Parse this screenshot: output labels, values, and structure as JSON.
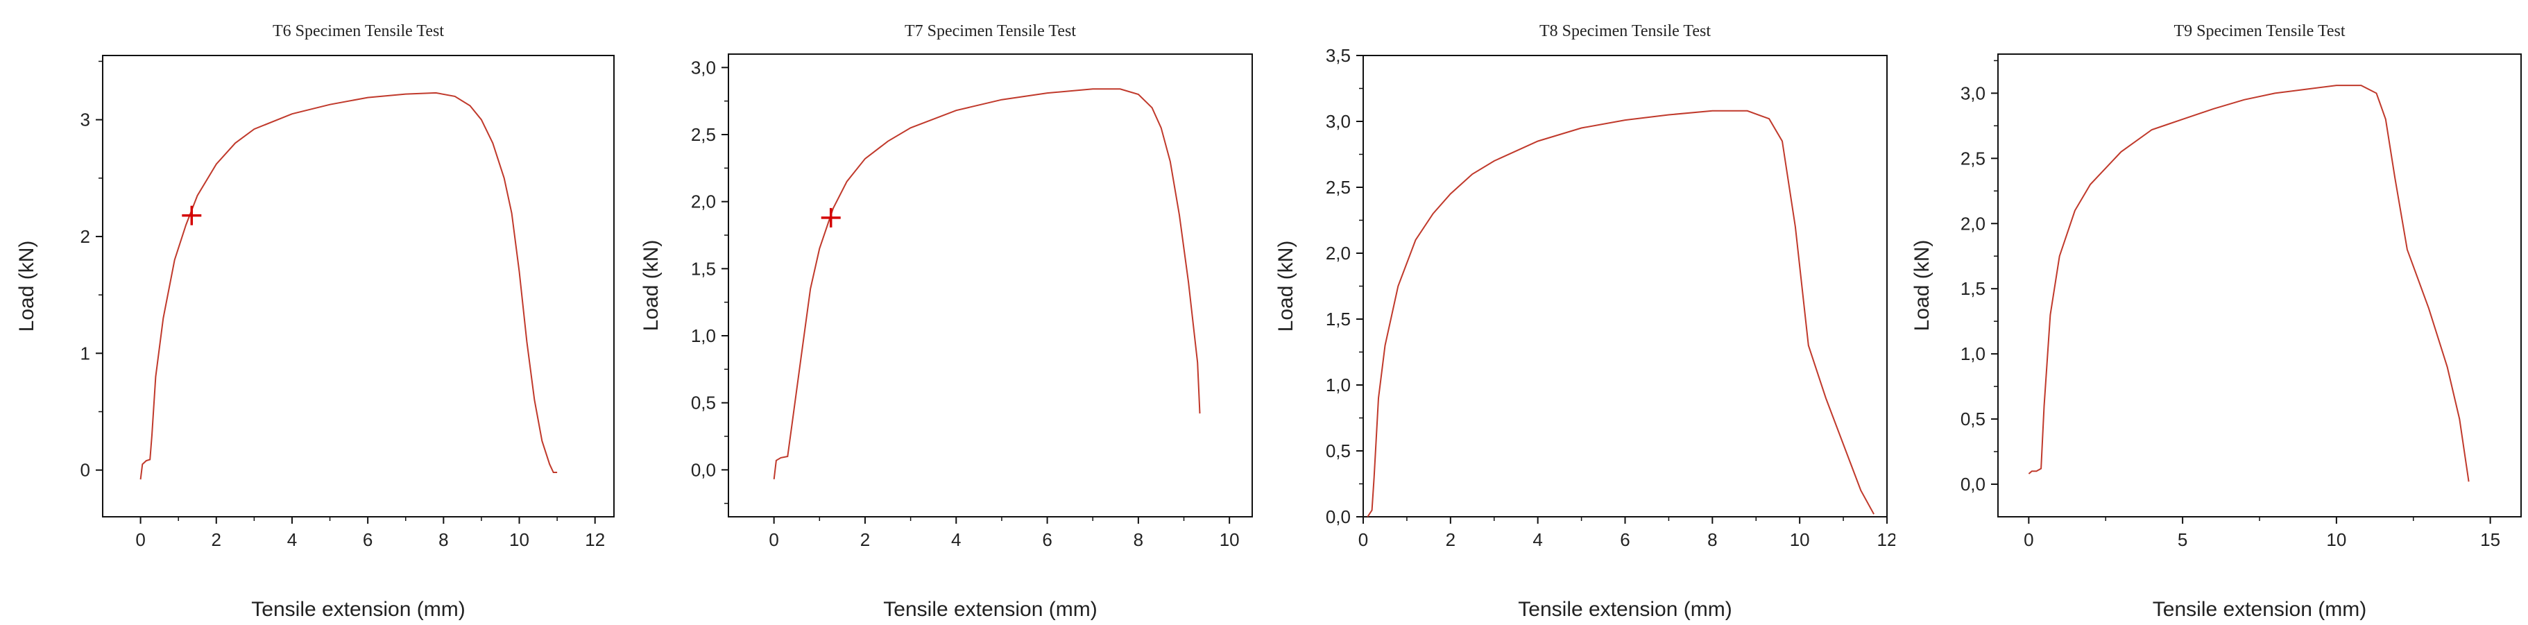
{
  "chart_data": [
    {
      "type": "line",
      "title": "T6 Specimen Tensile Test",
      "xlabel": "Tensile extension (mm)",
      "ylabel": "Load (kN)",
      "xlim": [
        -1,
        12.5
      ],
      "ylim": [
        -0.4,
        3.55
      ],
      "xticks": [
        0,
        2,
        4,
        6,
        8,
        10,
        12
      ],
      "xtick_labels": [
        "0",
        "2",
        "4",
        "6",
        "8",
        "10",
        "12"
      ],
      "yticks": [
        0,
        1,
        2,
        3
      ],
      "ytick_labels": [
        "0",
        "1",
        "2",
        "3"
      ],
      "grid": false,
      "series": [
        {
          "color": "#c0392b",
          "x": [
            0.0,
            0.05,
            0.15,
            0.25,
            0.3,
            0.4,
            0.6,
            0.9,
            1.2,
            1.5,
            2.0,
            2.5,
            3.0,
            4.0,
            5.0,
            6.0,
            7.0,
            7.8,
            8.3,
            8.7,
            9.0,
            9.3,
            9.6,
            9.8,
            10.0,
            10.2,
            10.4,
            10.6,
            10.8,
            10.9,
            11.0
          ],
          "y": [
            -0.08,
            0.05,
            0.08,
            0.09,
            0.3,
            0.8,
            1.3,
            1.8,
            2.1,
            2.35,
            2.62,
            2.8,
            2.92,
            3.05,
            3.13,
            3.19,
            3.22,
            3.23,
            3.2,
            3.12,
            3.0,
            2.8,
            2.5,
            2.2,
            1.7,
            1.1,
            0.6,
            0.25,
            0.05,
            -0.02,
            -0.02
          ]
        }
      ],
      "marker": {
        "x": 1.35,
        "y": 2.18,
        "symbol": "+",
        "color": "#d40000"
      }
    },
    {
      "type": "line",
      "title": "T7 Specimen Tensile Test",
      "xlabel": "Tensile extension (mm)",
      "ylabel": "Load (kN)",
      "xlim": [
        -1,
        10.5
      ],
      "ylim": [
        -0.35,
        3.1
      ],
      "xticks": [
        0,
        2,
        4,
        6,
        8,
        10
      ],
      "xtick_labels": [
        "0",
        "2",
        "4",
        "6",
        "8",
        "10"
      ],
      "yticks": [
        0,
        0.5,
        1.0,
        1.5,
        2.0,
        2.5,
        3.0
      ],
      "ytick_labels": [
        "0,0",
        "0,5",
        "1,0",
        "1,5",
        "2,0",
        "2,5",
        "3,0"
      ],
      "grid": false,
      "series": [
        {
          "color": "#c0392b",
          "x": [
            0.0,
            0.05,
            0.15,
            0.3,
            0.4,
            0.6,
            0.8,
            1.0,
            1.3,
            1.6,
            2.0,
            2.5,
            3.0,
            4.0,
            5.0,
            6.0,
            7.0,
            7.6,
            8.0,
            8.3,
            8.5,
            8.7,
            8.9,
            9.1,
            9.3,
            9.35
          ],
          "y": [
            -0.07,
            0.07,
            0.09,
            0.1,
            0.35,
            0.85,
            1.35,
            1.65,
            1.95,
            2.15,
            2.32,
            2.45,
            2.55,
            2.68,
            2.76,
            2.81,
            2.84,
            2.84,
            2.8,
            2.7,
            2.55,
            2.3,
            1.9,
            1.4,
            0.8,
            0.42
          ]
        }
      ],
      "marker": {
        "x": 1.25,
        "y": 1.88,
        "symbol": "+",
        "color": "#d40000"
      }
    },
    {
      "type": "line",
      "title": "T8 Specimen Tensile Test",
      "xlabel": "Tensile extension (mm)",
      "ylabel": "Load (kN)",
      "xlim": [
        0,
        12
      ],
      "ylim": [
        0,
        3.5
      ],
      "xticks": [
        0,
        2,
        4,
        6,
        8,
        10,
        12
      ],
      "xtick_labels": [
        "0",
        "2",
        "4",
        "6",
        "8",
        "10",
        "12"
      ],
      "yticks": [
        0,
        0.5,
        1.0,
        1.5,
        2.0,
        2.5,
        3.0,
        3.5
      ],
      "ytick_labels": [
        "0,0",
        "0,5",
        "1,0",
        "1,5",
        "2,0",
        "2,5",
        "3,0",
        "3,5"
      ],
      "grid": false,
      "series": [
        {
          "color": "#c0392b",
          "x": [
            0.1,
            0.2,
            0.25,
            0.35,
            0.5,
            0.8,
            1.2,
            1.6,
            2.0,
            2.5,
            3.0,
            4.0,
            5.0,
            6.0,
            7.0,
            8.0,
            8.8,
            9.3,
            9.6,
            9.9,
            10.2,
            10.6,
            11.0,
            11.4,
            11.7
          ],
          "y": [
            0.0,
            0.05,
            0.3,
            0.9,
            1.3,
            1.75,
            2.1,
            2.3,
            2.45,
            2.6,
            2.7,
            2.85,
            2.95,
            3.01,
            3.05,
            3.08,
            3.08,
            3.02,
            2.85,
            2.2,
            1.3,
            0.9,
            0.55,
            0.2,
            0.02
          ]
        }
      ]
    },
    {
      "type": "line",
      "title": "T9 Specimen Tensile Test",
      "xlabel": "Tensile extension (mm)",
      "ylabel": "Load (kN)",
      "xlim": [
        -1,
        16
      ],
      "ylim": [
        -0.25,
        3.3
      ],
      "xticks": [
        0,
        5,
        10,
        15
      ],
      "xtick_labels": [
        "0",
        "5",
        "10",
        "15"
      ],
      "yticks": [
        0,
        0.5,
        1.0,
        1.5,
        2.0,
        2.5,
        3.0
      ],
      "ytick_labels": [
        "0,0",
        "0,5",
        "1,0",
        "1,5",
        "2,0",
        "2,5",
        "3,0"
      ],
      "grid": false,
      "series": [
        {
          "color": "#c0392b",
          "x": [
            0.0,
            0.1,
            0.25,
            0.4,
            0.5,
            0.7,
            1.0,
            1.5,
            2.0,
            3.0,
            4.0,
            4.5,
            5.0,
            6.0,
            7.0,
            8.0,
            9.0,
            10.0,
            10.8,
            11.3,
            11.6,
            11.9,
            12.3,
            13.0,
            13.6,
            14.0,
            14.3
          ],
          "y": [
            0.08,
            0.1,
            0.1,
            0.12,
            0.6,
            1.3,
            1.75,
            2.1,
            2.3,
            2.55,
            2.72,
            2.76,
            2.8,
            2.88,
            2.95,
            3.0,
            3.03,
            3.06,
            3.06,
            3.0,
            2.8,
            2.35,
            1.8,
            1.35,
            0.9,
            0.5,
            0.02
          ]
        }
      ]
    }
  ]
}
